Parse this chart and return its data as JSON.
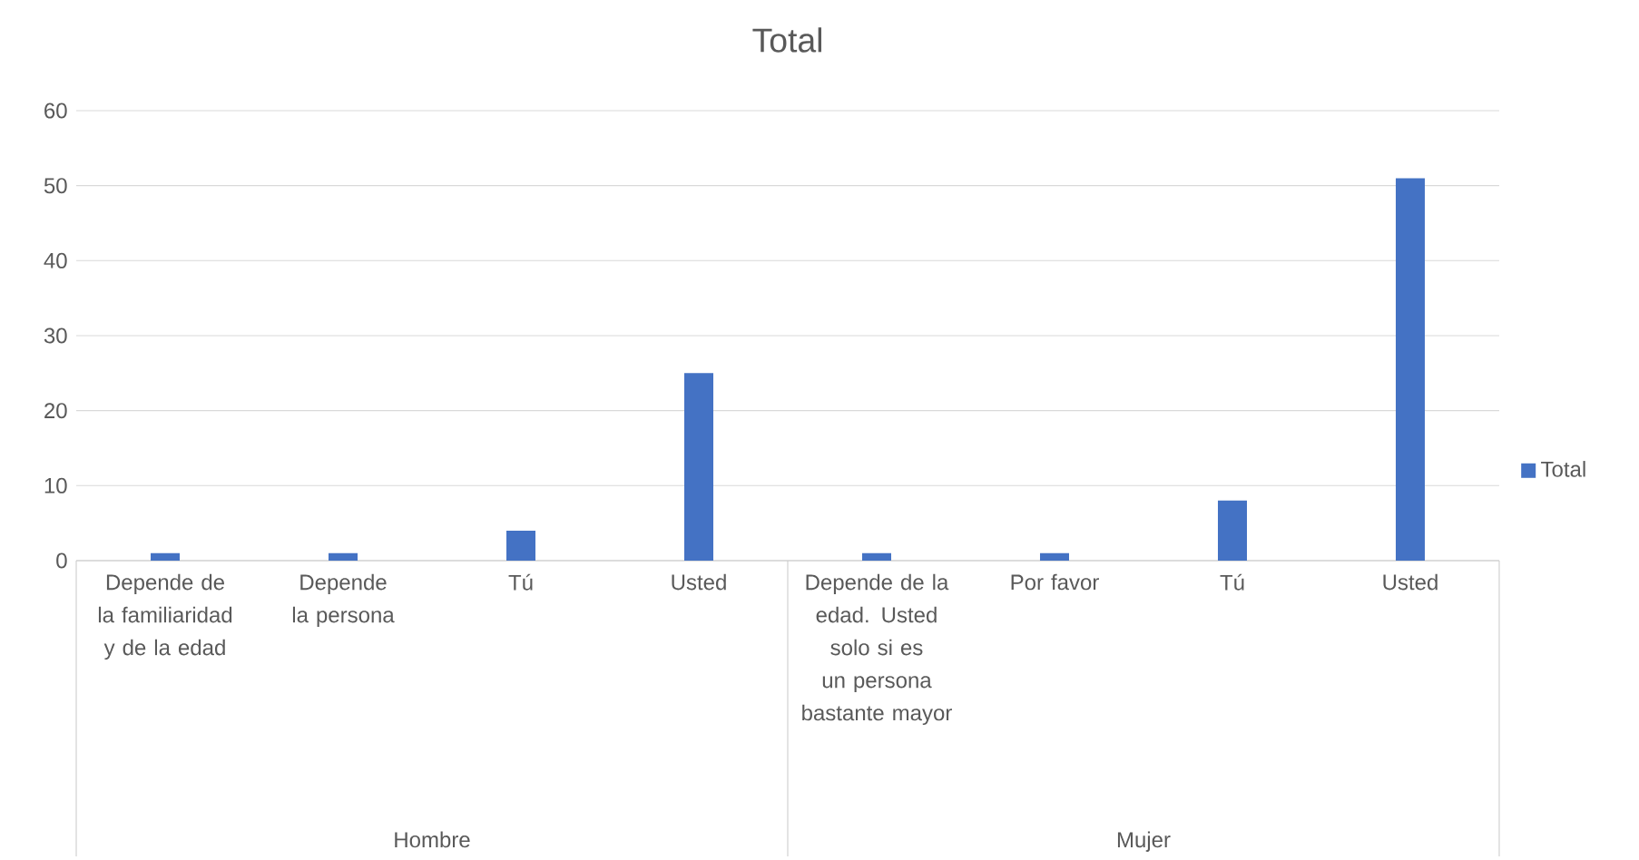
{
  "chart_data": {
    "type": "bar",
    "title": "Total",
    "categories": [
      "Depende de la familiaridad y de la edad",
      "Depende la persona",
      "Tú",
      "Usted",
      "Depende de la edad. Usted solo si es un persona bastante mayor",
      "Por favor",
      "Tú",
      "Usted"
    ],
    "series": [
      {
        "name": "Total",
        "color": "#4472c4",
        "values": [
          1,
          1,
          4,
          25,
          1,
          1,
          8,
          51
        ]
      }
    ],
    "annotations": [
      "Hombre",
      "Mujer"
    ],
    "ylim": [
      0,
      60
    ],
    "yticks": [
      0,
      10,
      20,
      30,
      40,
      50,
      60
    ],
    "grid": "y",
    "legend": "right"
  }
}
